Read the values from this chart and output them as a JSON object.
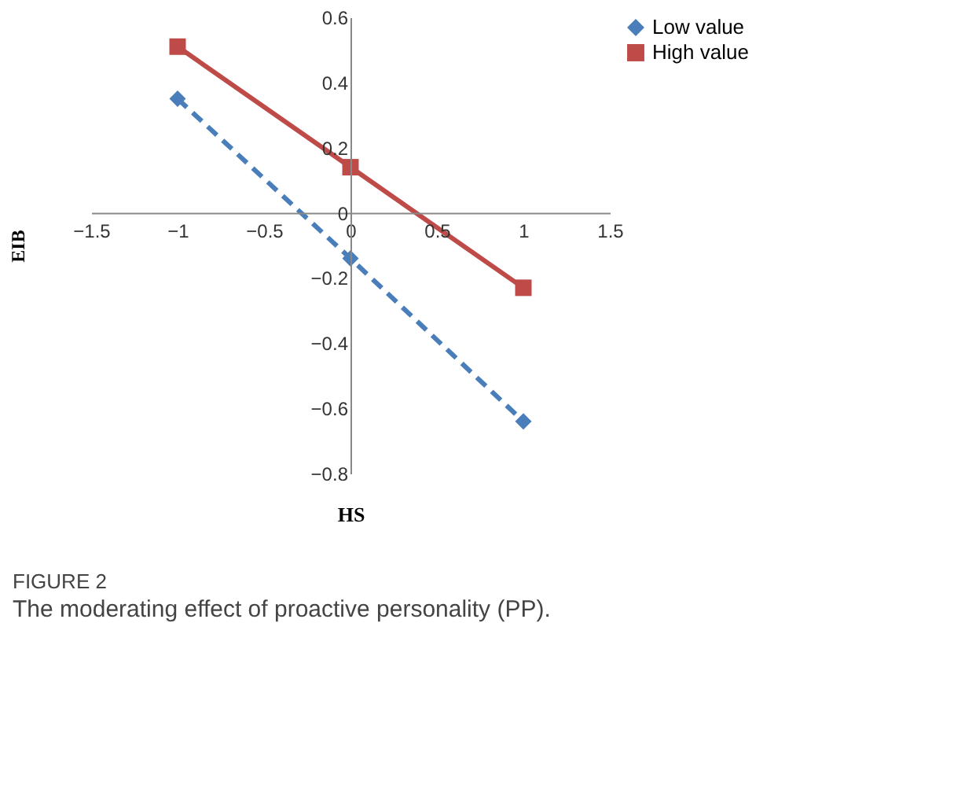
{
  "chart_data": {
    "type": "line",
    "xlabel": "HS",
    "ylabel": "EIB",
    "x": [
      -1,
      0,
      1
    ],
    "series": [
      {
        "name": "Low value",
        "color": "#4a7ebb",
        "values": [
          0.35,
          -0.14,
          -0.64
        ],
        "line_style": "dashed",
        "marker": "diamond"
      },
      {
        "name": "High value",
        "color": "#be4b48",
        "values": [
          0.51,
          0.14,
          -0.23
        ],
        "line_style": "solid",
        "marker": "square"
      }
    ],
    "xlim": [
      -1.5,
      1.5
    ],
    "xticks": [
      -1.5,
      -1,
      -0.5,
      0,
      0.5,
      1,
      1.5
    ],
    "ylim": [
      -0.8,
      0.6
    ],
    "yticks": [
      -0.8,
      -0.6,
      -0.4,
      -0.2,
      0,
      0.2,
      0.4,
      0.6
    ],
    "grid": false,
    "legend": "right",
    "annotations": [
      "FIGURE 2",
      "The moderating effect of proactive personality (PP)."
    ]
  }
}
